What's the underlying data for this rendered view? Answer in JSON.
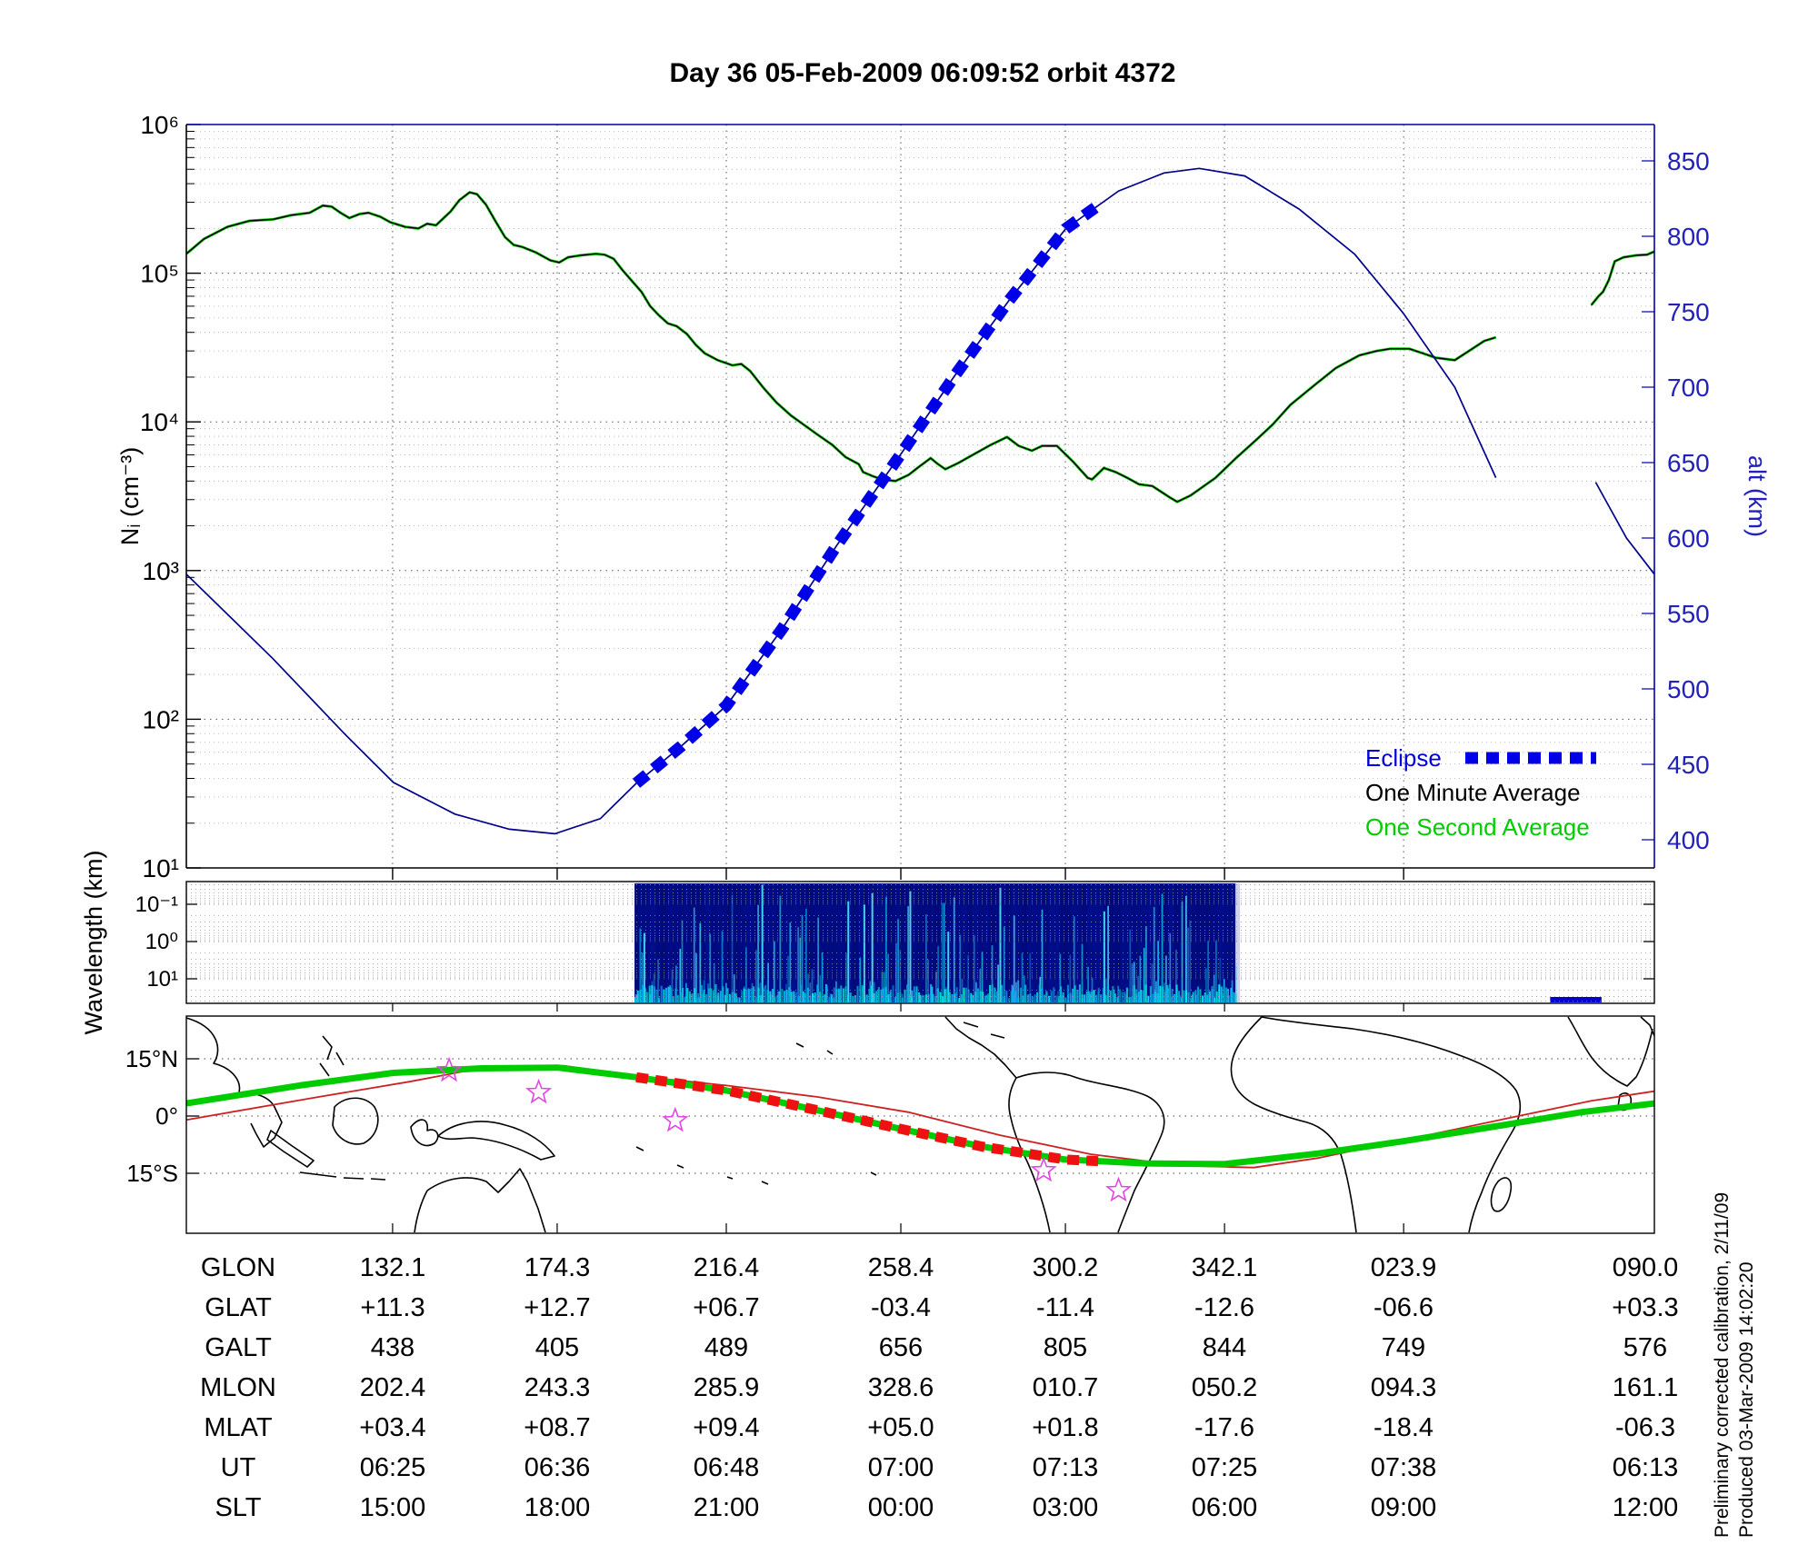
{
  "title": "Day 36  05-Feb-2009 06:09:52   orbit 4372",
  "legend": {
    "eclipse_label": "Eclipse",
    "one_minute_label": "One Minute Average",
    "one_second_label": "One Second Average"
  },
  "axes": {
    "ni_label": "Nᵢ (cm⁻³)",
    "ni_ticks": [
      "10⁶",
      "10⁵",
      "10⁴",
      "10³",
      "10²",
      "10¹"
    ],
    "alt_label": "alt (km)",
    "alt_ticks": [
      "850",
      "800",
      "750",
      "700",
      "650",
      "600",
      "550",
      "500",
      "450",
      "400"
    ],
    "wavelength_label": "Wavelength (km)",
    "wavelength_ticks": [
      "10⁻¹",
      "10⁰",
      "10¹"
    ],
    "map_lat_ticks": [
      "15°N",
      "0°",
      "15°S"
    ]
  },
  "credit": {
    "line1": "Preliminary corrected calibration, 2/11/09",
    "line2": "Produced 03-Mar-2009 14:02:20"
  },
  "table": {
    "rows": [
      {
        "label": "GLON",
        "values": [
          "132.1",
          "174.3",
          "216.4",
          "258.4",
          "300.2",
          "342.1",
          "023.9",
          "090.0"
        ]
      },
      {
        "label": "GLAT",
        "values": [
          "+11.3",
          "+12.7",
          "+06.7",
          "-03.4",
          "-11.4",
          "-12.6",
          "-06.6",
          "+03.3"
        ]
      },
      {
        "label": "GALT",
        "values": [
          "438",
          "405",
          "489",
          "656",
          "805",
          "844",
          "749",
          "576"
        ]
      },
      {
        "label": "MLON",
        "values": [
          "202.4",
          "243.3",
          "285.9",
          "328.6",
          "010.7",
          "050.2",
          "094.3",
          "161.1"
        ]
      },
      {
        "label": "MLAT",
        "values": [
          "+03.4",
          "+08.7",
          "+09.4",
          "+05.0",
          "+01.8",
          "-17.6",
          "-18.4",
          "-06.3"
        ]
      },
      {
        "label": "UT",
        "values": [
          "06:25",
          "06:36",
          "06:48",
          "07:00",
          "07:13",
          "07:25",
          "07:38",
          "06:13"
        ]
      },
      {
        "label": "SLT",
        "values": [
          "15:00",
          "18:00",
          "21:00",
          "00:00",
          "03:00",
          "06:00",
          "09:00",
          "12:00"
        ]
      }
    ]
  },
  "colors": {
    "one_second_green": "#00cc00",
    "one_minute_black": "#000000",
    "altitude_blue": "#00008b",
    "eclipse_blue": "#0000e8",
    "right_axis_blue": "#2222bb",
    "spectrogram_bg": "#000a7a",
    "spectrogram_streak": "#00c8e0",
    "map_track_green": "#00cc00",
    "map_equator_red": "#cc2222",
    "map_eclipse_red": "#ee1111",
    "star_magenta": "#e048e0"
  },
  "chart_data": {
    "type": "line",
    "x_axis": "one orbit; columns correspond to table UT/SLT positions",
    "x_units": "fraction of plot width",
    "column_fractions": [
      0.1405,
      0.2526,
      0.3678,
      0.4867,
      0.5988,
      0.7072,
      0.8292,
      1.0
    ],
    "ni_axis": {
      "label": "Nᵢ (cm⁻³)",
      "scale": "log",
      "range": [
        10,
        1000000
      ]
    },
    "alt_axis": {
      "label": "alt (km)",
      "scale": "linear",
      "tick_range": [
        400,
        850
      ]
    },
    "wavelength_axis": {
      "label": "Wavelength (km)",
      "scale": "log-inverted",
      "range": [
        0.1,
        10
      ]
    },
    "ion_density_series": {
      "name": "ion density (one-minute & one-second average)",
      "segments": [
        {
          "fx": [
            0.0,
            0.012,
            0.028,
            0.043,
            0.059,
            0.071,
            0.084,
            0.093,
            0.099,
            0.105,
            0.111,
            0.118,
            0.124,
            0.132,
            0.139,
            0.149,
            0.158,
            0.164,
            0.17,
            0.18,
            0.186,
            0.193,
            0.198,
            0.204,
            0.211,
            0.217,
            0.223,
            0.229,
            0.238,
            0.248,
            0.254,
            0.26,
            0.269,
            0.279,
            0.285,
            0.291,
            0.297,
            0.303,
            0.31,
            0.316,
            0.322,
            0.328,
            0.334,
            0.341,
            0.347,
            0.353,
            0.362,
            0.372,
            0.378,
            0.384,
            0.393,
            0.402,
            0.412,
            0.421,
            0.43,
            0.44,
            0.449,
            0.458,
            0.461,
            0.468,
            0.474,
            0.483,
            0.492,
            0.498,
            0.507,
            0.512,
            0.517,
            0.526,
            0.537,
            0.548,
            0.559,
            0.567,
            0.576,
            0.583,
            0.593,
            0.604,
            0.614,
            0.617,
            0.625,
            0.633,
            0.641,
            0.649,
            0.658,
            0.67,
            0.675,
            0.684,
            0.701,
            0.715,
            0.729,
            0.74,
            0.752,
            0.768,
            0.783,
            0.799,
            0.811,
            0.82,
            0.833,
            0.842,
            0.851,
            0.864,
            0.876,
            0.884,
            0.892
          ],
          "v": [
            135000,
            170000,
            205000,
            225000,
            230000,
            245000,
            255000,
            285000,
            280000,
            255000,
            235000,
            250000,
            255000,
            240000,
            220000,
            205000,
            200000,
            215000,
            210000,
            260000,
            310000,
            350000,
            340000,
            290000,
            220000,
            175000,
            155000,
            150000,
            138000,
            122000,
            118000,
            128000,
            132000,
            135000,
            133000,
            125000,
            105000,
            90000,
            75000,
            60000,
            52000,
            46000,
            44000,
            39000,
            33000,
            29000,
            26000,
            24000,
            24500,
            22000,
            17000,
            13500,
            11000,
            9500,
            8200,
            7000,
            5800,
            5200,
            4600,
            4300,
            4100,
            4000,
            4400,
            4900,
            5700,
            5200,
            4800,
            5300,
            6100,
            7000,
            7900,
            6900,
            6400,
            6900,
            6900,
            5400,
            4200,
            4100,
            4900,
            4600,
            4200,
            3800,
            3700,
            3100,
            2900,
            3200,
            4200,
            5700,
            7600,
            9600,
            13000,
            17500,
            23000,
            28000,
            30000,
            31000,
            31000,
            29000,
            27000,
            26000,
            31000,
            35000,
            37000
          ]
        },
        {
          "fx": [
            0.957,
            0.962,
            0.965,
            0.969,
            0.973,
            0.979,
            0.988,
            0.995,
            1.0
          ],
          "v": [
            61000,
            70000,
            75000,
            90000,
            120000,
            128000,
            132000,
            133000,
            140000
          ]
        }
      ]
    },
    "altitude_series": {
      "name": "satellite altitude (km)",
      "segments": [
        {
          "fx": [
            0.0,
            0.059,
            0.108,
            0.141,
            0.183,
            0.22,
            0.251,
            0.282,
            0.306,
            0.337,
            0.368,
            0.406,
            0.443,
            0.487,
            0.523,
            0.56,
            0.599,
            0.635,
            0.666,
            0.69,
            0.721,
            0.758,
            0.796,
            0.829,
            0.864,
            0.892
          ],
          "alt": [
            576,
            520,
            470,
            438,
            417,
            407,
            404,
            414,
            437,
            462,
            489,
            540,
            595,
            656,
            707,
            757,
            805,
            830,
            842,
            845,
            840,
            818,
            788,
            749,
            700,
            640
          ]
        },
        {
          "fx": [
            0.96,
            0.981,
            1.0
          ],
          "alt": [
            637,
            600,
            576
          ]
        }
      ]
    },
    "eclipse_span_fx": [
      0.3065,
      0.6223
    ],
    "spectrogram_block_fx": [
      0.3053,
      0.7146
    ],
    "spectrogram_extra_dash_fx": [
      0.929,
      0.964
    ],
    "map": {
      "ground_track": {
        "fx": [
          0.0,
          0.077,
          0.141,
          0.201,
          0.253,
          0.306,
          0.368,
          0.43,
          0.487,
          0.542,
          0.599,
          0.653,
          0.707,
          0.771,
          0.829,
          0.895,
          0.95,
          1.0
        ],
        "lat": [
          3.3,
          8.0,
          11.3,
          12.5,
          12.7,
          10.2,
          6.7,
          1.5,
          -3.4,
          -8.0,
          -11.4,
          -12.4,
          -12.6,
          -9.8,
          -6.6,
          -2.5,
          1.0,
          3.3
        ]
      },
      "magnetic_equator": {
        "fx": [
          0.0,
          0.09,
          0.152,
          0.207,
          0.257,
          0.306,
          0.368,
          0.43,
          0.492,
          0.554,
          0.616,
          0.678,
          0.727,
          0.771,
          0.833,
          0.895,
          0.957,
          1.0
        ],
        "lat": [
          -1.0,
          5.0,
          9.0,
          13.0,
          13.2,
          10.5,
          8.0,
          5.0,
          1.0,
          -5.0,
          -10.0,
          -13.0,
          -13.5,
          -11.0,
          -6.0,
          -1.0,
          4.0,
          6.5
        ]
      },
      "eclipse_span_fx": [
        0.3065,
        0.6223
      ],
      "stars": {
        "fx": [
          0.179,
          0.24,
          0.333,
          0.584,
          0.635
        ],
        "lat": [
          11.9,
          6.2,
          -1.2,
          -14.3,
          -19.5
        ]
      }
    }
  }
}
